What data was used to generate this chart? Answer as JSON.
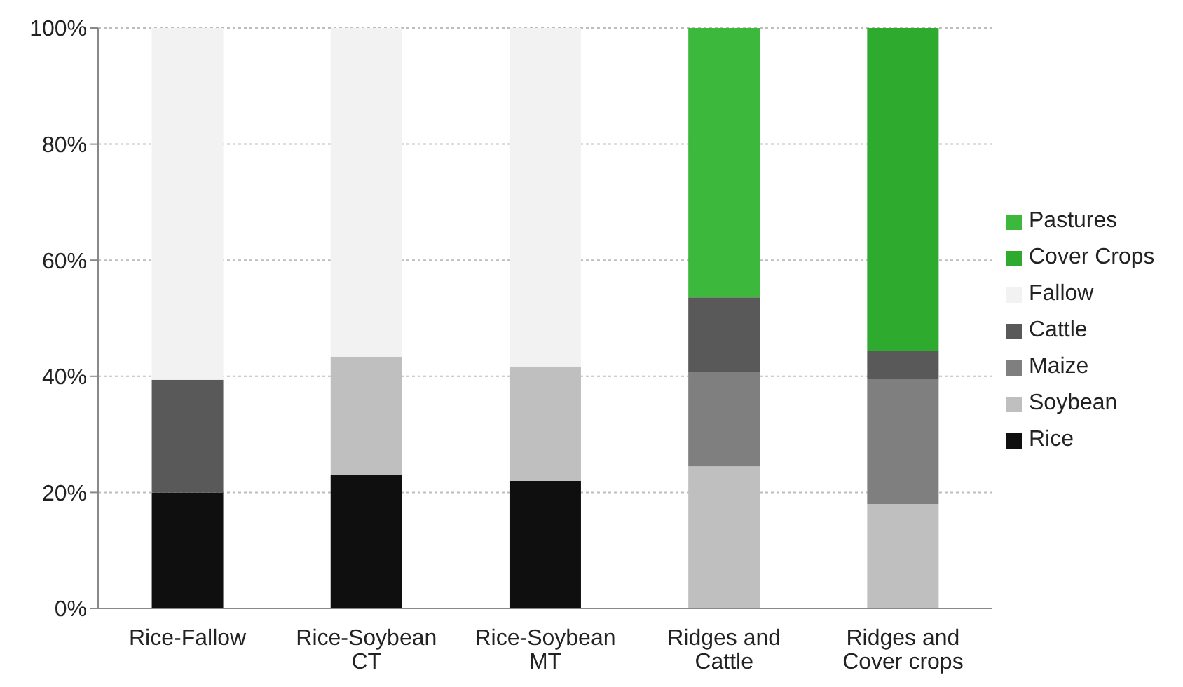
{
  "chart_data": {
    "type": "bar",
    "stacked": true,
    "categories": [
      "Rice-Fallow",
      "Rice-Soybean CT",
      "Rice-Soybean MT",
      "Ridges and Cattle",
      "Ridges and Cover crops"
    ],
    "series": [
      {
        "name": "Rice",
        "color": "#0f0f0f",
        "values": [
          20,
          23,
          22,
          0,
          0
        ]
      },
      {
        "name": "Soybean",
        "color": "#bfbfbf",
        "values": [
          0,
          20.4,
          19.7,
          24.5,
          18
        ]
      },
      {
        "name": "Maize",
        "color": "#7f7f7f",
        "values": [
          0,
          0,
          0,
          16.2,
          21.5
        ]
      },
      {
        "name": "Cattle",
        "color": "#595959",
        "values": [
          19.4,
          0,
          0,
          12.9,
          4.9
        ]
      },
      {
        "name": "Fallow",
        "color": "#f2f2f2",
        "values": [
          60.6,
          56.6,
          58.3,
          0,
          0
        ]
      },
      {
        "name": "Cover Crops",
        "color": "#2eaa2e",
        "values": [
          0,
          0,
          0,
          0,
          55.6
        ]
      },
      {
        "name": "Pastures",
        "color": "#3cb83c",
        "values": [
          0,
          0,
          0,
          46.4,
          0
        ]
      }
    ],
    "ylim": [
      0,
      100
    ],
    "yticks": [
      {
        "value": 0,
        "label": "0%"
      },
      {
        "value": 20,
        "label": "20%"
      },
      {
        "value": 40,
        "label": "40%"
      },
      {
        "value": 60,
        "label": "60%"
      },
      {
        "value": 80,
        "label": "80%"
      },
      {
        "value": 100,
        "label": "100%"
      }
    ],
    "grid": "y",
    "legend": "right"
  }
}
